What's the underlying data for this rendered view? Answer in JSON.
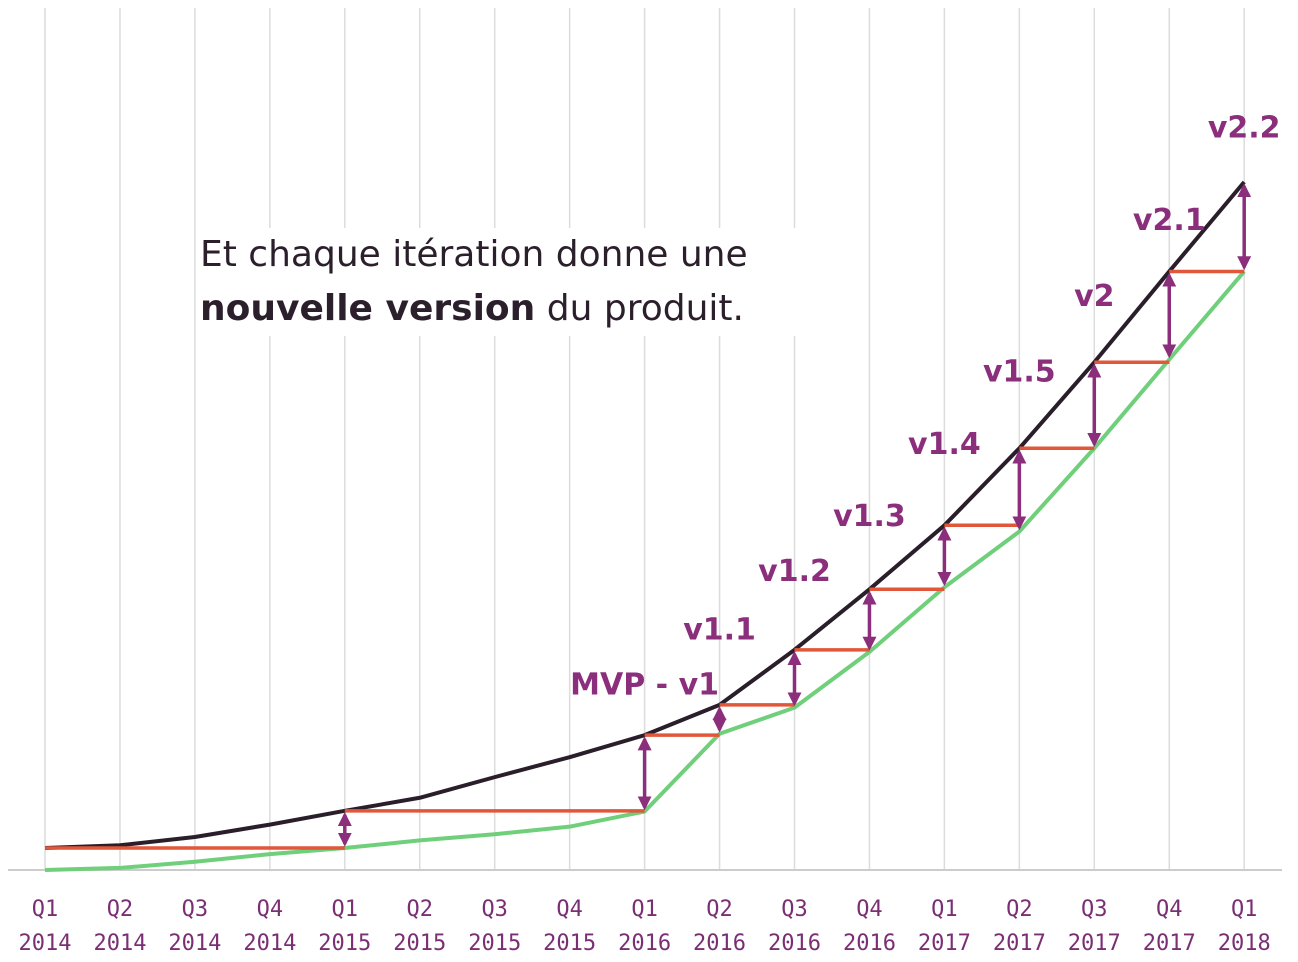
{
  "headline": {
    "line1": "Et chaque itération donne une",
    "bold": "nouvelle version",
    "rest": " du produit."
  },
  "colors": {
    "grid": "#dcdcdc",
    "axis": "#cccccc",
    "black_line": "#2a1e2a",
    "green_line": "#6fcf7a",
    "red_step": "#e0573a",
    "purple_arrow": "#8b2f7d",
    "tick_text": "#7a2f74"
  },
  "chart_data": {
    "type": "line",
    "categories": [
      [
        "Q1",
        "2014"
      ],
      [
        "Q2",
        "2014"
      ],
      [
        "Q3",
        "2014"
      ],
      [
        "Q4",
        "2014"
      ],
      [
        "Q1",
        "2015"
      ],
      [
        "Q2",
        "2015"
      ],
      [
        "Q3",
        "2015"
      ],
      [
        "Q4",
        "2015"
      ],
      [
        "Q1",
        "2016"
      ],
      [
        "Q2",
        "2016"
      ],
      [
        "Q3",
        "2016"
      ],
      [
        "Q4",
        "2016"
      ],
      [
        "Q1",
        "2017"
      ],
      [
        "Q2",
        "2017"
      ],
      [
        "Q3",
        "2017"
      ],
      [
        "Q4",
        "2017"
      ],
      [
        "Q1",
        "2018"
      ]
    ],
    "ylim": [
      0,
      100
    ],
    "grid": "vertical",
    "series": [
      {
        "values": [
          3.2,
          3.6,
          4.8,
          6.6,
          8.6,
          10.5,
          13.5,
          16.4,
          19.6,
          24.0,
          32.0,
          40.8,
          50.1,
          61.3,
          73.8,
          87.0,
          100.0
        ]
      },
      {
        "values": [
          0.0,
          0.3,
          1.2,
          2.3,
          3.2,
          4.3,
          5.2,
          6.3,
          8.5,
          19.8,
          23.6,
          31.7,
          41.1,
          49.2,
          61.3,
          74.2,
          87.0
        ]
      }
    ],
    "steps": [
      {
        "from": 4,
        "to": 4,
        "level": 8.6
      },
      {
        "from": 8,
        "to": 9,
        "level": 19.6
      },
      {
        "from": 9,
        "to": 10,
        "level": 24.0
      },
      {
        "from": 10,
        "to": 11,
        "level": 32.0
      },
      {
        "from": 11,
        "to": 12,
        "level": 40.8
      },
      {
        "from": 12,
        "to": 13,
        "level": 50.1
      },
      {
        "from": 13,
        "to": 14,
        "level": 61.3
      },
      {
        "from": 14,
        "to": 15,
        "level": 73.8
      },
      {
        "from": 15,
        "to": 16,
        "level": 87.0
      }
    ],
    "red_baseline": {
      "from": 0,
      "to": 4,
      "level": 3.2
    },
    "red_long": {
      "from": 4,
      "to": 8,
      "level": 8.6
    },
    "arrows": [
      4,
      8,
      9,
      10,
      11,
      12,
      13,
      14,
      15,
      16
    ],
    "versions": [
      {
        "label": "MVP - v1",
        "at": 8,
        "level": 25.5
      },
      {
        "label": "v1.1",
        "at": 9,
        "level": 33.5
      },
      {
        "label": "v1.2",
        "at": 10,
        "level": 42.0
      },
      {
        "label": "v1.3",
        "at": 11,
        "level": 50.0
      },
      {
        "label": "v1.4",
        "at": 12,
        "level": 60.5
      },
      {
        "label": "v1.5",
        "at": 13,
        "level": 71.0
      },
      {
        "label": "v2",
        "at": 14,
        "level": 82.0
      },
      {
        "label": "v2.1",
        "at": 15,
        "level": 93.0
      },
      {
        "label": "v2.2",
        "at": 16,
        "level": 106.5
      }
    ]
  }
}
